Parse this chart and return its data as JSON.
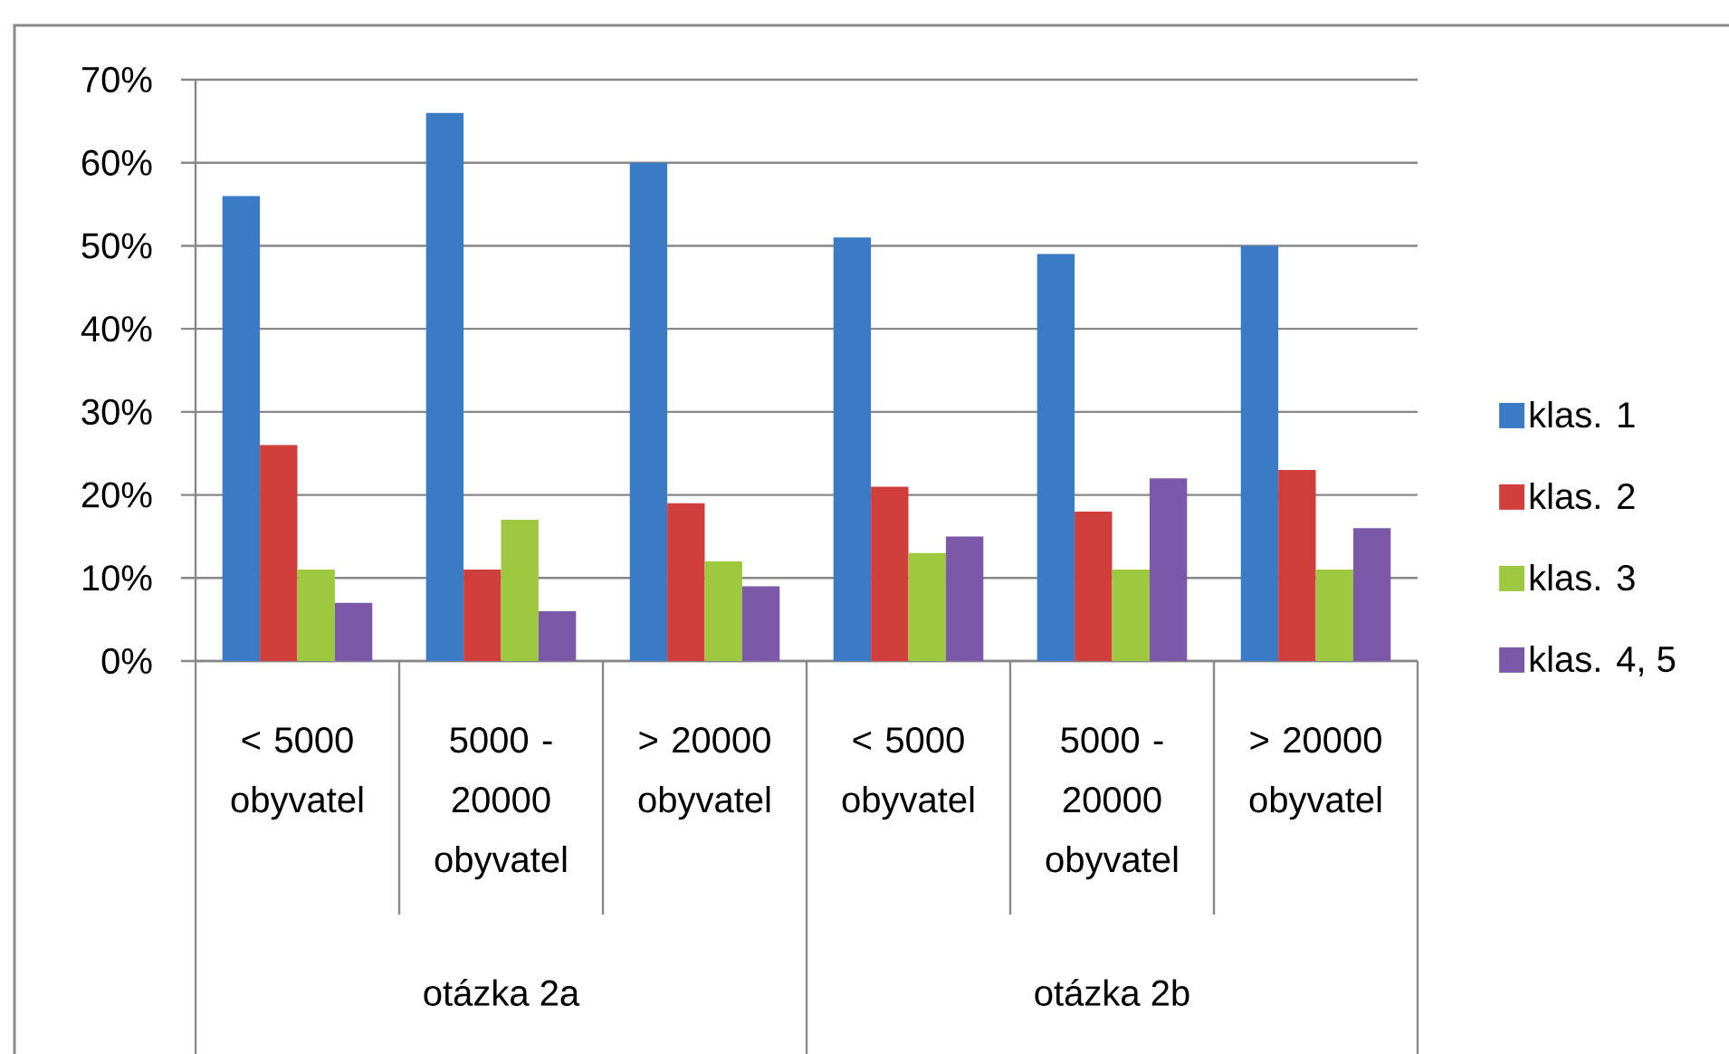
{
  "chart_data": {
    "type": "bar",
    "categories": [
      "< 5000 obyvatel",
      "5000 - 20000 obyvatel",
      "> 20000 obyvatel",
      "< 5000 obyvatel",
      "5000 - 20000 obyvatel",
      "> 20000 obyvatel"
    ],
    "series": [
      {
        "name": "klas. 1",
        "color": "#3b7bc6",
        "values": [
          56,
          66,
          60,
          51,
          49,
          50
        ]
      },
      {
        "name": "klas. 2",
        "color": "#d03f3b",
        "values": [
          26,
          11,
          19,
          21,
          18,
          23
        ]
      },
      {
        "name": "klas. 3",
        "color": "#9dc83f",
        "values": [
          11,
          17,
          12,
          13,
          11,
          11
        ]
      },
      {
        "name": "klas. 4, 5",
        "color": "#7c58a8",
        "values": [
          7,
          6,
          9,
          15,
          22,
          16
        ]
      }
    ],
    "ylim": [
      0,
      70
    ],
    "yticks": [
      {
        "value": 0,
        "label": "0%"
      },
      {
        "value": 10,
        "label": "10%"
      },
      {
        "value": 20,
        "label": "20%"
      },
      {
        "value": 30,
        "label": "30%"
      },
      {
        "value": 40,
        "label": "40%"
      },
      {
        "value": 50,
        "label": "50%"
      },
      {
        "value": 60,
        "label": "60%"
      },
      {
        "value": 70,
        "label": "70%"
      }
    ],
    "grid": "y",
    "legend": "right",
    "annotations": [
      "otázka 2a",
      "otázka 2b"
    ]
  }
}
